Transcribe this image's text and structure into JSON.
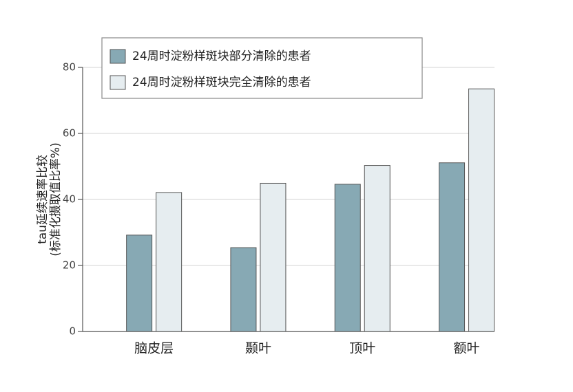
{
  "chart_data": {
    "type": "bar",
    "y_label": [
      "tau延续速率比较",
      "(标准化摄取值比率%)"
    ],
    "categories": [
      "脑皮层",
      "颞叶",
      "顶叶",
      "额叶"
    ],
    "series": [
      {
        "name": "24周时淀粉样斑块部分清除的患者",
        "color": "#87a9b4",
        "values": [
          29.2,
          25.4,
          44.6,
          51.1
        ]
      },
      {
        "name": "24周时淀粉样斑块完全清除的患者",
        "color": "#e6edf0",
        "values": [
          42.1,
          44.9,
          50.3,
          73.5
        ]
      }
    ],
    "ylim": [
      0,
      80
    ],
    "yticks": [
      0,
      20,
      40,
      60,
      80
    ],
    "grid": true
  }
}
